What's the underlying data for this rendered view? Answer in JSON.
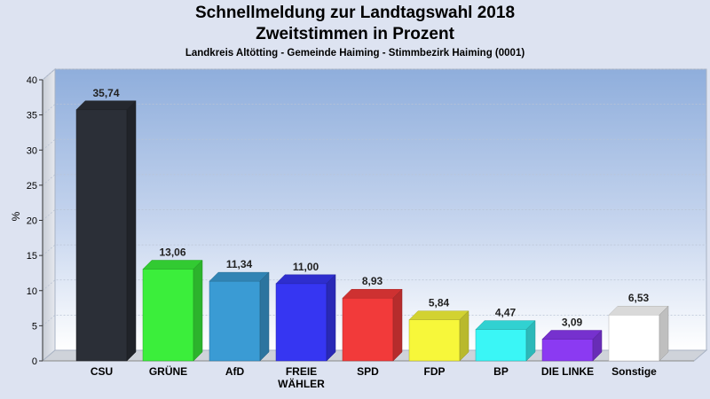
{
  "title": "Schnellmeldung zur Landtagswahl 2018",
  "subtitle": "Zweitstimmen in Prozent",
  "location": "Landkreis Altötting - Gemeinde Haiming - Stimmbezirk Haiming (0001)",
  "chart_data": {
    "type": "bar",
    "ylabel": "%",
    "ylim": [
      0,
      40
    ],
    "yticks": [
      0,
      5,
      10,
      15,
      20,
      25,
      30,
      35,
      40
    ],
    "grid": true,
    "categories": [
      "CSU",
      "GRÜNE",
      "AfD",
      "FREIE WÄHLER",
      "SPD",
      "FDP",
      "BP",
      "DIE LINKE",
      "Sonstige"
    ],
    "category_lines": [
      [
        "CSU"
      ],
      [
        "GRÜNE"
      ],
      [
        "AfD"
      ],
      [
        "FREIE",
        "WÄHLER"
      ],
      [
        "SPD"
      ],
      [
        "FDP"
      ],
      [
        "BP"
      ],
      [
        "DIE LINKE"
      ],
      [
        "Sonstige"
      ]
    ],
    "values": [
      35.74,
      13.06,
      11.34,
      11.0,
      8.93,
      5.84,
      4.47,
      3.09,
      6.53
    ],
    "value_labels": [
      "35,74",
      "13,06",
      "11,34",
      "11,00",
      "8,93",
      "5,84",
      "4,47",
      "3,09",
      "6,53"
    ],
    "colors": [
      "#2b2f37",
      "#3bee3b",
      "#3a9bd4",
      "#3636f2",
      "#f23a3a",
      "#f7f73a",
      "#3af6f6",
      "#8b3af2",
      "#ffffff"
    ]
  }
}
